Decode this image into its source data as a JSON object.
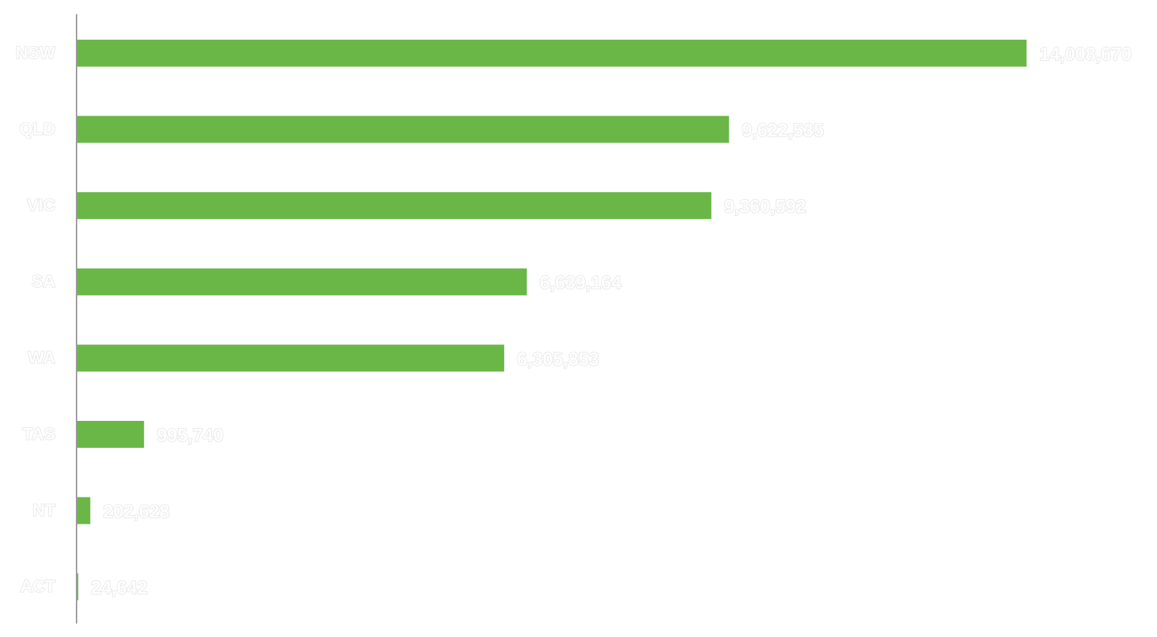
{
  "chart_data": {
    "type": "bar",
    "orientation": "horizontal",
    "categories": [
      "NSW",
      "QLD",
      "VIC",
      "SA",
      "WA",
      "TAS",
      "NT",
      "ACT"
    ],
    "values": [
      14008670,
      9622535,
      9360592,
      6639164,
      6305853,
      995740,
      202628,
      24642
    ],
    "value_labels": [
      "14,008,670",
      "9,622,535",
      "9,360,592",
      "6,639,164",
      "6,305,853",
      "995,740",
      "202,628",
      "24,642"
    ],
    "title": "",
    "xlabel": "",
    "ylabel": "",
    "xlim": [
      0,
      14008670
    ],
    "grid": false,
    "legend": "none",
    "colors": {
      "bar": "#6ab748",
      "axis": "#9a9a9a",
      "label_fill": "#ffffff",
      "label_outline": "#e3e3e3"
    }
  }
}
